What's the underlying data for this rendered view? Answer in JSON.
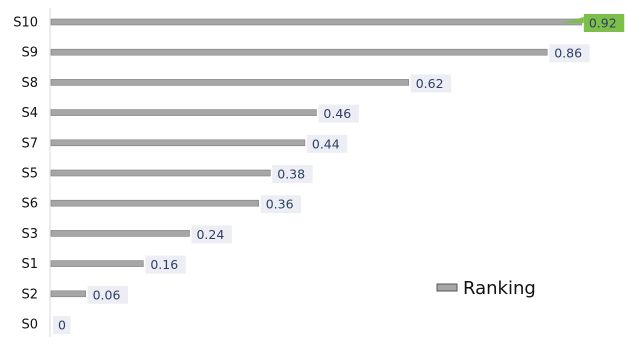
{
  "chart_data": {
    "type": "bar",
    "orientation": "horizontal",
    "categories": [
      "S10",
      "S9",
      "S8",
      "S4",
      "S7",
      "S5",
      "S6",
      "S3",
      "S1",
      "S2",
      "S0"
    ],
    "values": [
      0.92,
      0.86,
      0.62,
      0.46,
      0.44,
      0.38,
      0.36,
      0.24,
      0.16,
      0.06,
      0
    ],
    "value_labels": [
      "0.92",
      "0.86",
      "0.62",
      "0.46",
      "0.44",
      "0.38",
      "0.36",
      "0.24",
      "0.16",
      "0.06",
      "0"
    ],
    "series": [
      {
        "name": "Ranking"
      }
    ],
    "legend": {
      "label": "Ranking",
      "placement": "bottom-right"
    },
    "highlight_category": "S10",
    "xlim": [
      0,
      1
    ],
    "title": "",
    "xlabel": "",
    "ylabel": "",
    "grid": false,
    "colors": {
      "bar": "#a6a6a6",
      "bar_edge": "#7f7f7f",
      "label_bg": "#eceef3",
      "label_text": "#2e3f66",
      "highlight": "#7dbf4a"
    }
  }
}
